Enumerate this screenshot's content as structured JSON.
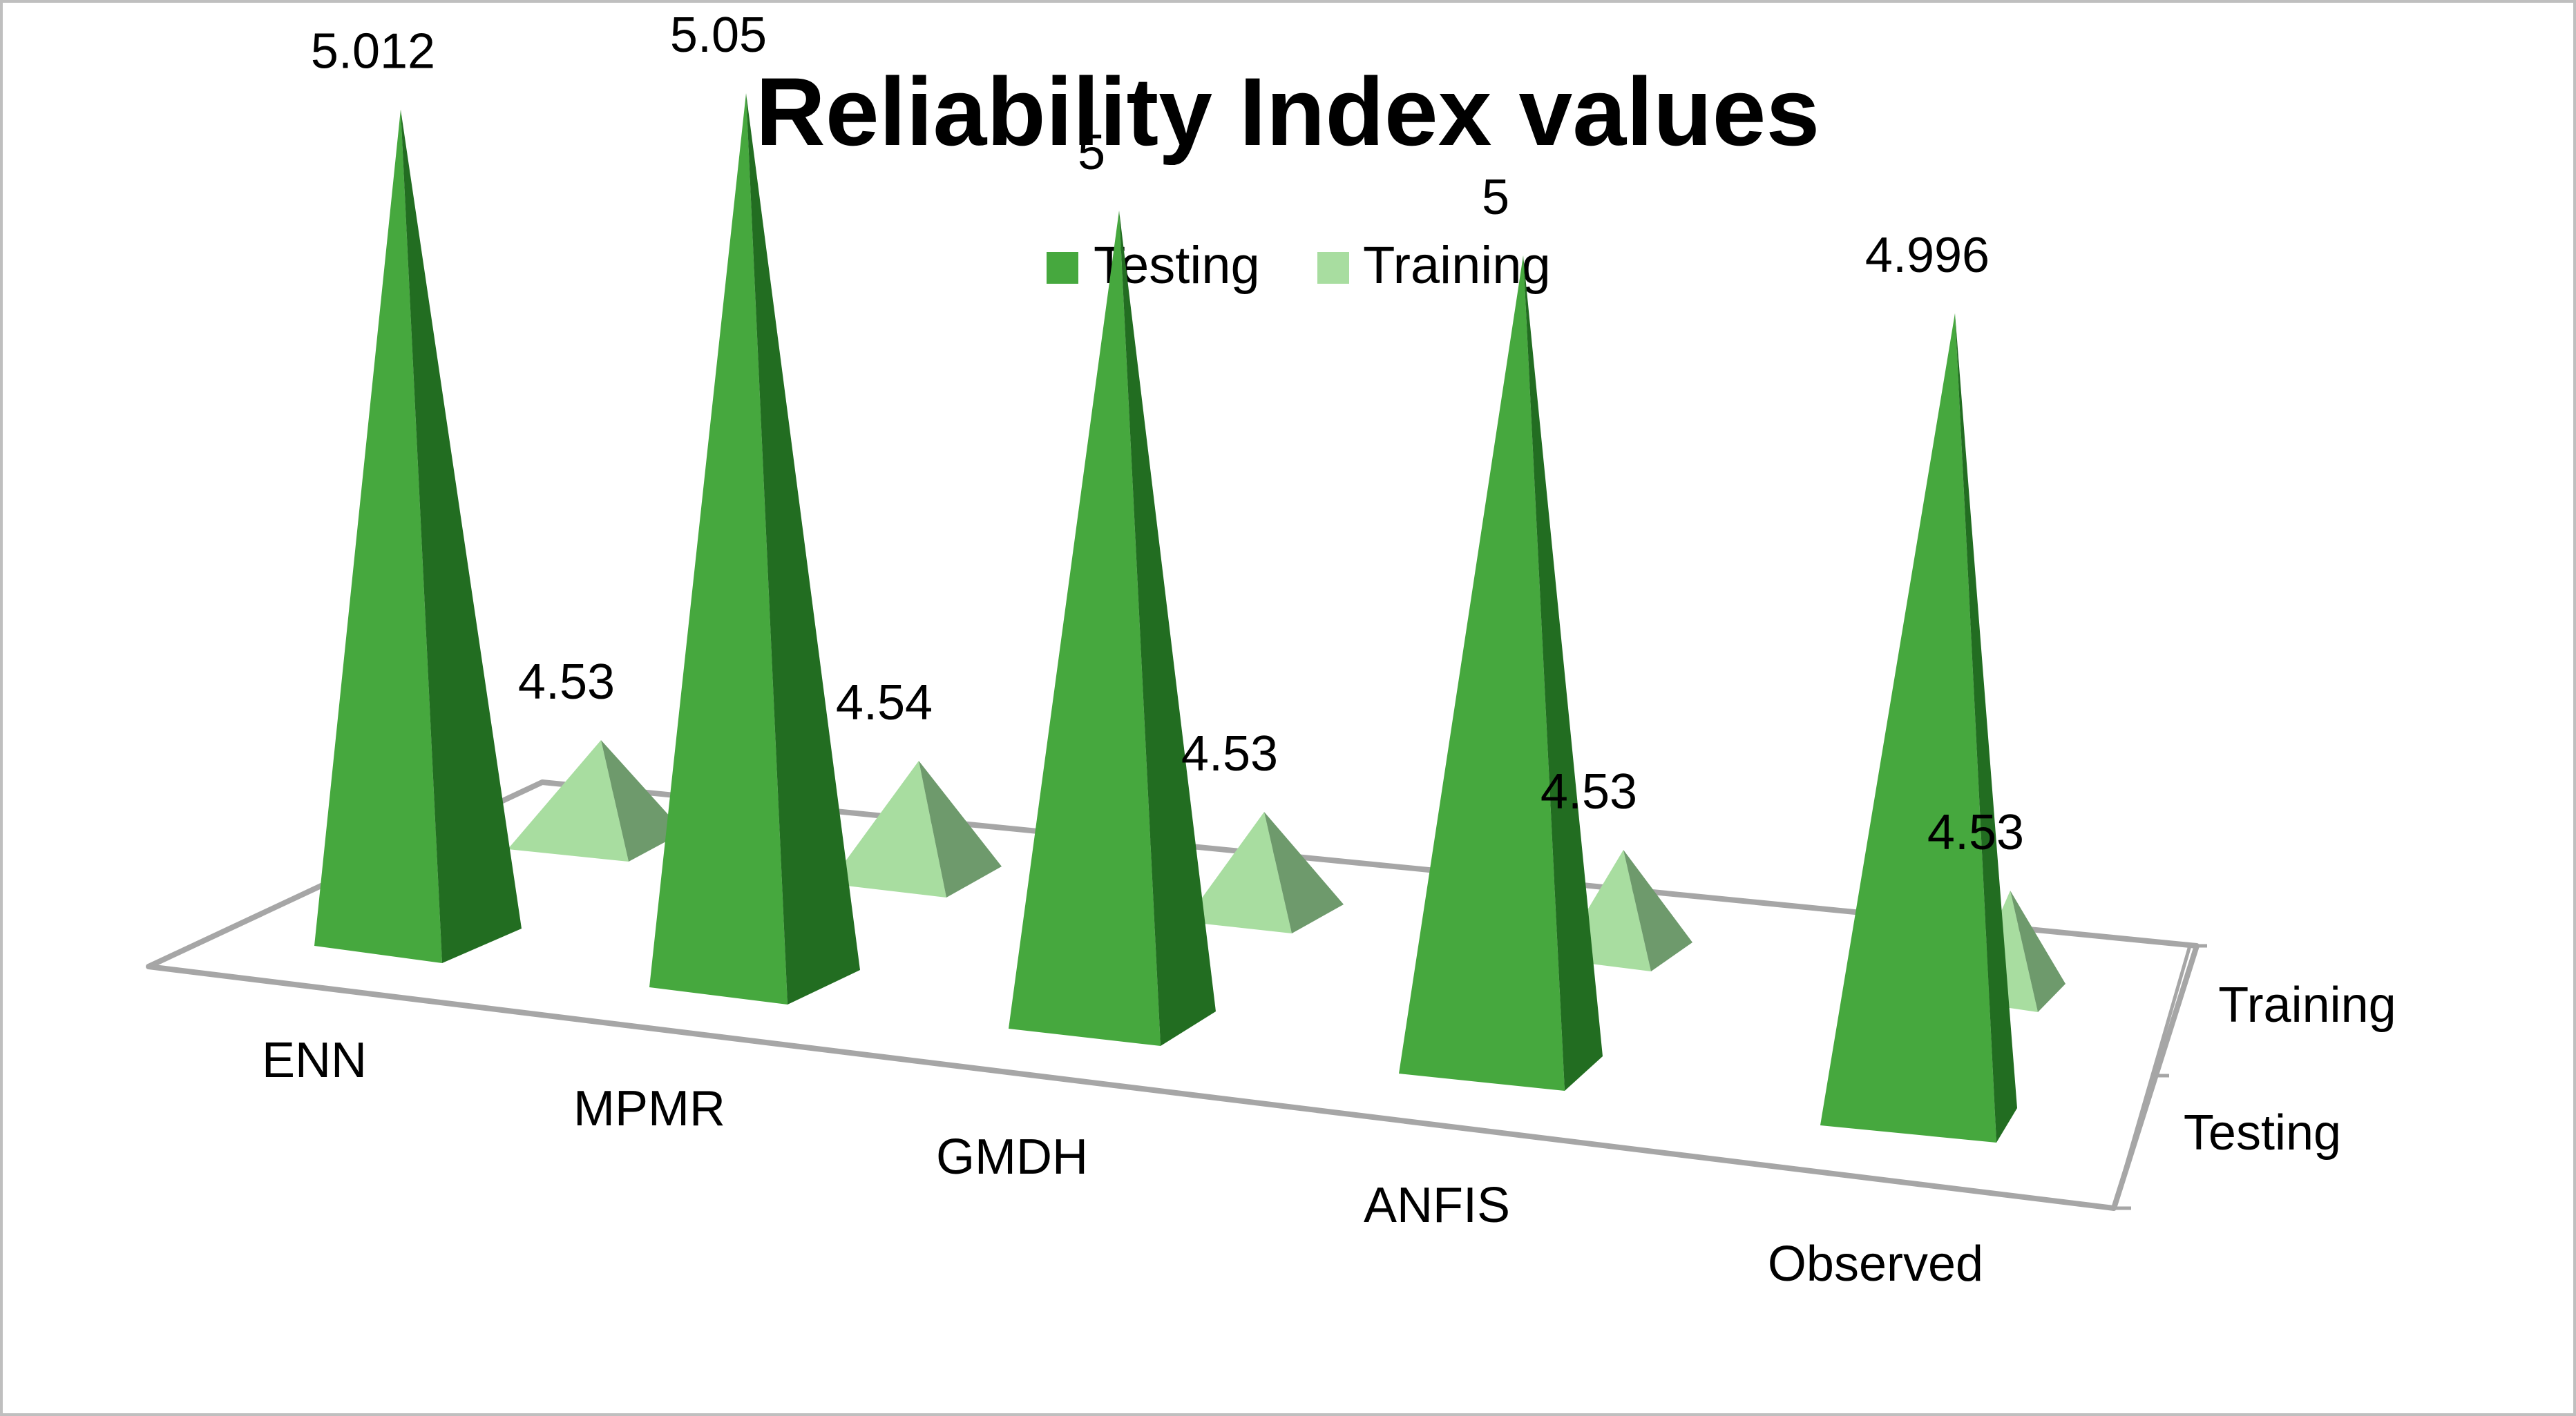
{
  "chart_data": {
    "type": "bar",
    "style": "3d-pyramid",
    "title": "Reliability Index values",
    "categories": [
      "ENN",
      "MPMR",
      "GMDH",
      "ANFIS",
      "Observed"
    ],
    "series": [
      {
        "name": "Testing",
        "values": [
          5.012,
          5.05,
          5,
          5,
          4.996
        ],
        "labels": [
          "5.012",
          "5.05",
          "5",
          "5",
          "4.996"
        ]
      },
      {
        "name": "Training",
        "values": [
          4.53,
          4.54,
          4.53,
          4.53,
          4.53
        ],
        "labels": [
          "4.53",
          "4.54",
          "4.53",
          "4.53",
          "4.53"
        ]
      }
    ],
    "depth_axis_labels": [
      "Training",
      "Testing"
    ],
    "legend": [
      "Testing",
      "Training"
    ],
    "legend_position": "top-center",
    "colors": {
      "testing_front": "#46A83E",
      "testing_side": "#226D21",
      "training_front": "#A8DDA0",
      "training_side": "#6E9A6C",
      "floor": "#A6A6A6"
    },
    "gridlines": false
  }
}
